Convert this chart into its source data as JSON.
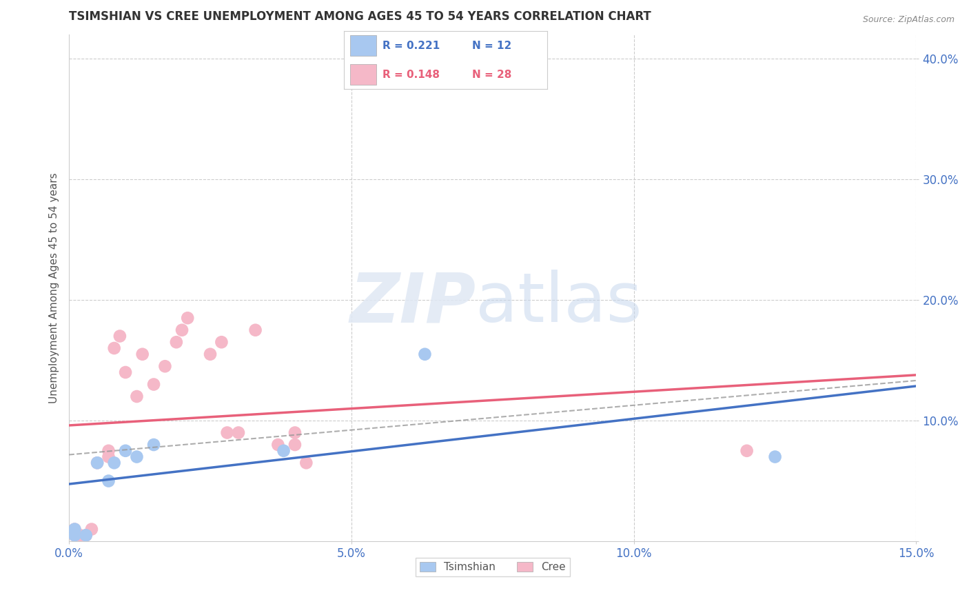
{
  "title": "TSIMSHIAN VS CREE UNEMPLOYMENT AMONG AGES 45 TO 54 YEARS CORRELATION CHART",
  "source": "Source: ZipAtlas.com",
  "ylabel": "Unemployment Among Ages 45 to 54 years",
  "xlim": [
    0.0,
    0.15
  ],
  "ylim": [
    0.0,
    0.42
  ],
  "xticks": [
    0.0,
    0.05,
    0.1,
    0.15
  ],
  "xticklabels": [
    "0.0%",
    "5.0%",
    "10.0%",
    "15.0%"
  ],
  "yticks": [
    0.0,
    0.1,
    0.2,
    0.3,
    0.4
  ],
  "yticklabels": [
    "",
    "10.0%",
    "20.0%",
    "30.0%",
    "40.0%"
  ],
  "tsimshian_color": "#A8C8F0",
  "cree_color": "#F5B8C8",
  "tsimshian_line_color": "#4472C4",
  "cree_line_color": "#E8607A",
  "tsimshian_x": [
    0.001,
    0.001,
    0.003,
    0.005,
    0.007,
    0.008,
    0.01,
    0.012,
    0.015,
    0.038,
    0.063,
    0.125
  ],
  "tsimshian_y": [
    0.005,
    0.01,
    0.005,
    0.065,
    0.05,
    0.065,
    0.075,
    0.07,
    0.08,
    0.075,
    0.155,
    0.07
  ],
  "cree_x": [
    0.001,
    0.001,
    0.002,
    0.003,
    0.004,
    0.005,
    0.007,
    0.007,
    0.008,
    0.009,
    0.01,
    0.012,
    0.013,
    0.015,
    0.017,
    0.019,
    0.02,
    0.021,
    0.025,
    0.027,
    0.028,
    0.03,
    0.033,
    0.037,
    0.04,
    0.04,
    0.042,
    0.12
  ],
  "cree_y": [
    0.005,
    0.01,
    0.005,
    0.005,
    0.01,
    0.065,
    0.07,
    0.075,
    0.16,
    0.17,
    0.14,
    0.12,
    0.155,
    0.13,
    0.145,
    0.165,
    0.175,
    0.185,
    0.155,
    0.165,
    0.09,
    0.09,
    0.175,
    0.08,
    0.09,
    0.08,
    0.065,
    0.075
  ],
  "background_color": "#ffffff",
  "grid_color": "#cccccc",
  "axis_color": "#cccccc",
  "title_color": "#333333",
  "tick_color": "#4472C4",
  "legend_r_color_tsimshian": "#4472C4",
  "legend_r_color_cree": "#E8607A",
  "tsimshian_r": "0.221",
  "tsimshian_n": "12",
  "cree_r": "0.148",
  "cree_n": "28"
}
